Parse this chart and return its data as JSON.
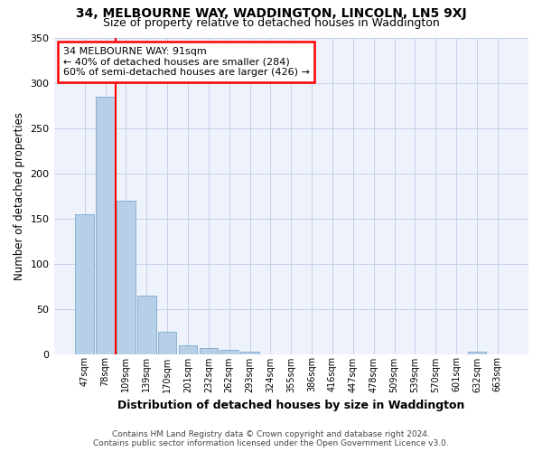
{
  "title1": "34, MELBOURNE WAY, WADDINGTON, LINCOLN, LN5 9XJ",
  "title2": "Size of property relative to detached houses in Waddington",
  "xlabel": "Distribution of detached houses by size in Waddington",
  "ylabel": "Number of detached properties",
  "categories": [
    "47sqm",
    "78sqm",
    "109sqm",
    "139sqm",
    "170sqm",
    "201sqm",
    "232sqm",
    "262sqm",
    "293sqm",
    "324sqm",
    "355sqm",
    "386sqm",
    "416sqm",
    "447sqm",
    "478sqm",
    "509sqm",
    "539sqm",
    "570sqm",
    "601sqm",
    "632sqm",
    "663sqm"
  ],
  "values": [
    155,
    285,
    170,
    65,
    25,
    10,
    7,
    5,
    3,
    0,
    0,
    0,
    0,
    0,
    0,
    0,
    0,
    0,
    0,
    3,
    0
  ],
  "bar_color": "#b8cfe8",
  "bar_edge_color": "#7aabd0",
  "annotation_title": "34 MELBOURNE WAY: 91sqm",
  "annotation_line1": "← 40% of detached houses are smaller (284)",
  "annotation_line2": "60% of semi-detached houses are larger (426) →",
  "red_line_x": 1.5,
  "ylim": [
    0,
    350
  ],
  "yticks": [
    0,
    50,
    100,
    150,
    200,
    250,
    300,
    350
  ],
  "footer1": "Contains HM Land Registry data © Crown copyright and database right 2024.",
  "footer2": "Contains public sector information licensed under the Open Government Licence v3.0.",
  "bg_color": "#eef2fb",
  "grid_color": "#c5cfe8"
}
